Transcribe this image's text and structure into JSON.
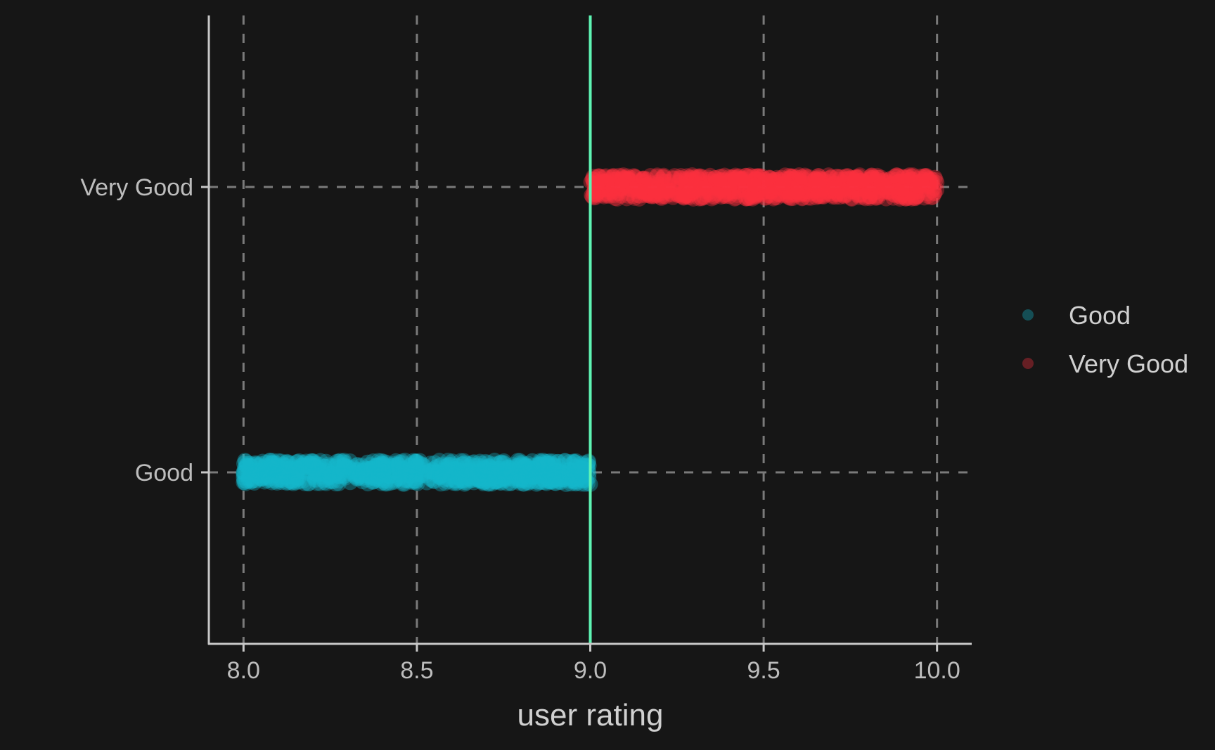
{
  "chart_data": {
    "type": "scatter",
    "title": "",
    "xlabel": "user rating",
    "ylabel": "",
    "xlim": [
      7.9,
      10.1
    ],
    "x_ticks": [
      "8.0",
      "8.5",
      "9.0",
      "9.5",
      "10.0"
    ],
    "categories": [
      "Good",
      "Very Good"
    ],
    "grid": true,
    "legend_position": "right",
    "reference_line": {
      "x": 9.0,
      "color": "#5ff5b4"
    },
    "series": [
      {
        "name": "Good",
        "color": "#13b6cc",
        "x_min": 8.0,
        "x_max": 9.0
      },
      {
        "name": "Very Good",
        "color": "#fc3040",
        "x_min": 9.0,
        "x_max": 10.0
      }
    ]
  }
}
